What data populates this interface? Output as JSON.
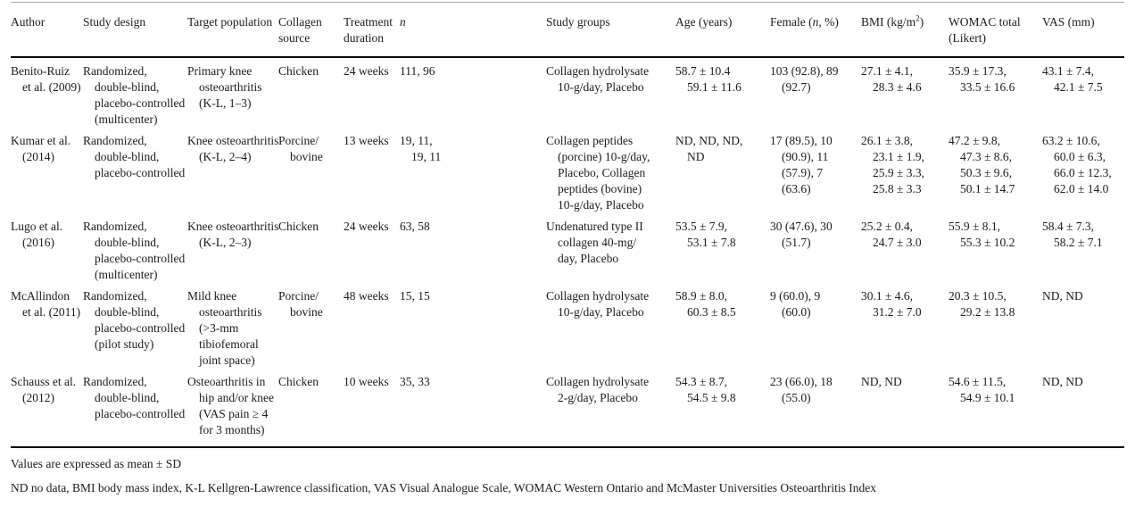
{
  "table": {
    "columns": [
      {
        "key": "author",
        "lines": [
          "Author"
        ]
      },
      {
        "key": "study_design",
        "lines": [
          "Study design"
        ]
      },
      {
        "key": "target_population",
        "lines": [
          "Target population"
        ]
      },
      {
        "key": "collagen_source",
        "lines": [
          "Collagen",
          "source"
        ]
      },
      {
        "key": "treatment_duration",
        "lines": [
          "Treatment",
          "duration"
        ]
      },
      {
        "key": "n",
        "lines": [
          "*n*"
        ]
      },
      {
        "key": "study_groups",
        "lines": [
          "Study groups"
        ]
      },
      {
        "key": "age",
        "lines": [
          "Age (years)"
        ]
      },
      {
        "key": "female",
        "lines": [
          "Female (*n*, %)"
        ]
      },
      {
        "key": "bmi",
        "lines": [
          "BMI (kg/m^2^)"
        ]
      },
      {
        "key": "womac",
        "lines": [
          "WOMAC total",
          "(Likert)"
        ]
      },
      {
        "key": "vas",
        "lines": [
          "VAS (mm)"
        ]
      }
    ],
    "rows": [
      {
        "author": [
          "Benito-Ruiz",
          "et al. (2009)"
        ],
        "study_design": [
          "Randomized,",
          "double-blind,",
          "placebo-controlled",
          "(multicenter)"
        ],
        "target_population": [
          "Primary knee",
          "osteoarthritis",
          "(K-L, 1–3)"
        ],
        "collagen_source": [
          "Chicken"
        ],
        "treatment_duration": [
          "24 weeks"
        ],
        "n": [
          "111, 96"
        ],
        "study_groups": [
          "Collagen hydrolysate",
          "10-g/day, Placebo"
        ],
        "age": [
          "58.7 ± 10.4",
          "59.1 ± 11.6"
        ],
        "female": [
          "103 (92.8), 89",
          "(92.7)"
        ],
        "bmi": [
          "27.1 ± 4.1,",
          "28.3 ± 4.6"
        ],
        "womac": [
          "35.9 ± 17.3,",
          "33.5 ± 16.6"
        ],
        "vas": [
          "43.1 ± 7.4,",
          "42.1 ± 7.5"
        ]
      },
      {
        "author": [
          "Kumar et al.",
          "(2014)"
        ],
        "study_design": [
          "Randomized,",
          "double-blind,",
          "placebo-controlled"
        ],
        "target_population": [
          "Knee osteoarthritis",
          "(K-L, 2–4)"
        ],
        "collagen_source": [
          "Porcine/",
          "bovine"
        ],
        "treatment_duration": [
          "13 weeks"
        ],
        "n": [
          "19, 11,",
          "19, 11"
        ],
        "study_groups": [
          "Collagen peptides",
          "(porcine) 10-g/day,",
          "Placebo, Collagen",
          "peptides (bovine)",
          "10-g/day, Placebo"
        ],
        "age": [
          "ND, ND, ND,",
          "ND"
        ],
        "female": [
          "17 (89.5), 10",
          "(90.9), 11",
          "(57.9), 7",
          "(63.6)"
        ],
        "bmi": [
          "26.1 ± 3.8,",
          "23.1 ± 1.9,",
          "25.9 ± 3.3,",
          "25.8 ± 3.3"
        ],
        "womac": [
          "47.2 ± 9.8,",
          "47.3 ± 8.6,",
          "50.3 ± 9.6,",
          "50.1 ± 14.7"
        ],
        "vas": [
          "63.2 ± 10.6,",
          "60.0 ± 6.3,",
          "66.0 ± 12.3,",
          "62.0 ± 14.0"
        ]
      },
      {
        "author": [
          "Lugo et al.",
          "(2016)"
        ],
        "study_design": [
          "Randomized,",
          "double-blind,",
          "placebo-controlled",
          "(multicenter)"
        ],
        "target_population": [
          "Knee osteoarthritis",
          "(K-L, 2–3)"
        ],
        "collagen_source": [
          "Chicken"
        ],
        "treatment_duration": [
          "24 weeks"
        ],
        "n": [
          "63, 58"
        ],
        "study_groups": [
          "Undenatured type II",
          "collagen 40-mg/",
          "day, Placebo"
        ],
        "age": [
          "53.5 ± 7.9,",
          "53.1 ± 7.8"
        ],
        "female": [
          "30 (47.6), 30",
          "(51.7)"
        ],
        "bmi": [
          "25.2 ± 0.4,",
          "24.7 ± 3.0"
        ],
        "womac": [
          "55.9 ± 8.1,",
          "55.3 ± 10.2"
        ],
        "vas": [
          "58.4 ± 7.3,",
          "58.2 ± 7.1"
        ]
      },
      {
        "author": [
          "McAllindon",
          "et al. (2011)"
        ],
        "study_design": [
          "Randomized,",
          "double-blind,",
          "placebo-controlled",
          "(pilot study)"
        ],
        "target_population": [
          "Mild knee",
          "osteoarthritis",
          "(>3-mm",
          "tibiofemoral",
          "joint space)"
        ],
        "collagen_source": [
          "Porcine/",
          "bovine"
        ],
        "treatment_duration": [
          "48 weeks"
        ],
        "n": [
          "15, 15"
        ],
        "study_groups": [
          "Collagen hydrolysate",
          "10-g/day, Placebo"
        ],
        "age": [
          "58.9 ± 8.0,",
          "60.3 ± 8.5"
        ],
        "female": [
          "9 (60.0), 9",
          "(60.0)"
        ],
        "bmi": [
          "30.1 ± 4.6,",
          "31.2 ± 7.0"
        ],
        "womac": [
          "20.3 ± 10.5,",
          "29.2 ± 13.8"
        ],
        "vas": [
          "ND, ND"
        ]
      },
      {
        "author": [
          "Schauss et al.",
          "(2012)"
        ],
        "study_design": [
          "Randomized,",
          "double-blind,",
          "placebo-controlled"
        ],
        "target_population": [
          "Osteoarthritis in",
          "hip and/or knee",
          "(VAS pain ≥ 4",
          "for 3 months)"
        ],
        "collagen_source": [
          "Chicken"
        ],
        "treatment_duration": [
          "10 weeks"
        ],
        "n": [
          "35, 33"
        ],
        "study_groups": [
          "Collagen hydrolysate",
          "2-g/day, Placebo"
        ],
        "age": [
          "54.3 ± 8.7,",
          "54.5 ± 9.8"
        ],
        "female": [
          "23 (66.0), 18",
          "(55.0)"
        ],
        "bmi": [
          "ND, ND"
        ],
        "womac": [
          "54.6 ± 11.5,",
          "54.9 ± 10.1"
        ],
        "vas": [
          "ND, ND"
        ]
      }
    ]
  },
  "footnotes": [
    "Values are expressed as mean ± SD",
    "ND no data, BMI body mass index, K-L Kellgren-Lawrence classification, VAS Visual Analogue Scale, WOMAC Western Ontario and McMaster Universities Osteoarthritis Index"
  ],
  "colors": {
    "text": "#1b1b1b",
    "rule": "#000000"
  }
}
